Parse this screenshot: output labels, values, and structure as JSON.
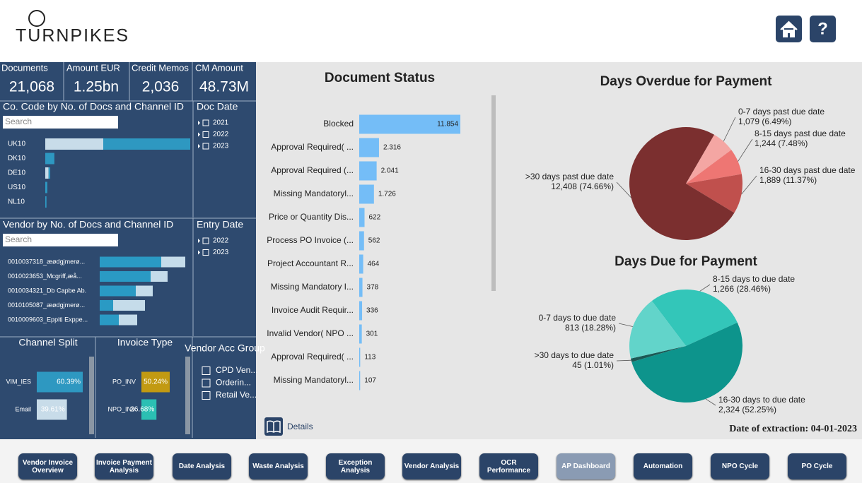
{
  "header": {
    "logo": "TURNPIKES",
    "help": "?"
  },
  "kpis": [
    {
      "label": "Documents",
      "value": "21,068"
    },
    {
      "label": "Amount EUR",
      "value": "1.25bn"
    },
    {
      "label": "Credit Memos",
      "value": "2,036"
    },
    {
      "label": "CM Amount",
      "value": "48.73M"
    }
  ],
  "slicers": {
    "doc_date": {
      "title": "Doc Date",
      "items": [
        "2021",
        "2022",
        "2023"
      ]
    },
    "entry_date": {
      "title": "Entry Date",
      "items": [
        "2022",
        "2023"
      ]
    },
    "vendor_acc_group": {
      "title": "Vendor Acc Group",
      "items": [
        "CPD Ven...",
        "Orderin...",
        "Retail Ve..."
      ]
    }
  },
  "details_button": "Details",
  "date_of_extraction": "Date of extraction: 04-01-2023",
  "nav": {
    "buttons": [
      "Vendor Invoice Overview",
      "Invoice Payment Analysis",
      "Date Analysis",
      "Waste Analysis",
      "Exception Analysis",
      "Vendor Analysis",
      "OCR Performance",
      "AP Dashboard",
      "Automation",
      "NPO Cycle",
      "PO Cycle"
    ]
  },
  "chart_data": [
    {
      "type": "stacked-hbar",
      "title": "Co. Code by No. of Docs and Channel ID",
      "search_placeholder": "Search",
      "categories": [
        "UK10",
        "DK10",
        "DE10",
        "US10",
        "NL10"
      ],
      "series": [
        {
          "color": "#c8dce9",
          "values": [
            7000,
            0,
            400,
            0,
            0
          ]
        },
        {
          "color": "#2e98c1",
          "values": [
            10500,
            1100,
            200,
            250,
            150
          ]
        }
      ]
    },
    {
      "type": "stacked-hbar",
      "title": "Vendor by No. of Docs and Channel ID",
      "search_placeholder": "Search",
      "categories": [
        "0010037318_æødgjmerø...",
        "0010023653_Mcgriff,æå...",
        "0010034321_Db Capbe Ab.",
        "0010105087_æødgjmerø...",
        "0010009603_Eppiti Exppe..."
      ],
      "series": [
        {
          "color": "#2a9ac4",
          "values": [
            870,
            720,
            510,
            190,
            270
          ]
        },
        {
          "color": "#c5dcea",
          "values": [
            340,
            240,
            240,
            450,
            260
          ]
        }
      ]
    },
    {
      "type": "hbar",
      "title": "Channel Split",
      "categories": [
        "VIM_IES",
        "Email"
      ],
      "values": [
        60.39,
        39.61
      ],
      "value_labels": [
        "60.39%",
        "39.61%"
      ],
      "colors": [
        "#2e98c1",
        "#c8dce9"
      ]
    },
    {
      "type": "hbar",
      "title": "Invoice Type",
      "categories": [
        "PO_INV",
        "NPO_INV"
      ],
      "values": [
        50.24,
        26.68
      ],
      "value_labels": [
        "50.24%",
        "26.68%"
      ],
      "colors": [
        "#c29a12",
        "#2bbfb3"
      ]
    },
    {
      "type": "hbar",
      "title": "Document Status",
      "categories": [
        "Blocked",
        "Approval Required( ...",
        "Approval Required (...",
        "Missing Mandatoryl...",
        "Price or Quantity Dis...",
        "Process PO Invoice (...",
        "Project Accountant R...",
        "Missing Mandatory I...",
        "Invoice Audit Requir...",
        "Invalid Vendor( NPO ...",
        "Approval Required( ...",
        "Missing Mandatoryl..."
      ],
      "values": [
        11854,
        2316,
        2041,
        1726,
        622,
        562,
        464,
        378,
        336,
        301,
        113,
        107
      ],
      "value_labels": [
        "11.854",
        "2.316",
        "2.041",
        "1.726",
        "622",
        "562",
        "464",
        "378",
        "336",
        "301",
        "113",
        "107"
      ],
      "color": "#74bdf7"
    },
    {
      "type": "pie",
      "title": "Days Overdue for Payment",
      "categories": [
        "0-7 days past due date",
        "8-15 days past due date",
        "16-30 days past due date",
        ">30 days past due date"
      ],
      "values": [
        1079,
        1244,
        1889,
        12408
      ],
      "value_labels": [
        "1,079 (6.49%)",
        "1,244 (7.48%)",
        "1,889 (11.37%)",
        "12,408 (74.66%)"
      ],
      "colors": [
        "#f4a6a3",
        "#ee7673",
        "#c0504d",
        "#7b2f2f"
      ]
    },
    {
      "type": "pie",
      "title": "Days Due for Payment",
      "categories": [
        "8-15 days to due date",
        "16-30 days to due date",
        ">30 days to due date",
        "0-7 days to due date"
      ],
      "values": [
        1266,
        2324,
        45,
        813
      ],
      "value_labels": [
        "1,266 (28.46%)",
        "2,324 (52.25%)",
        "45 (1.01%)",
        "813 (18.28%)"
      ],
      "colors": [
        "#33c6b9",
        "#0d948c",
        "#1c5955",
        "#62d4ca"
      ]
    }
  ]
}
